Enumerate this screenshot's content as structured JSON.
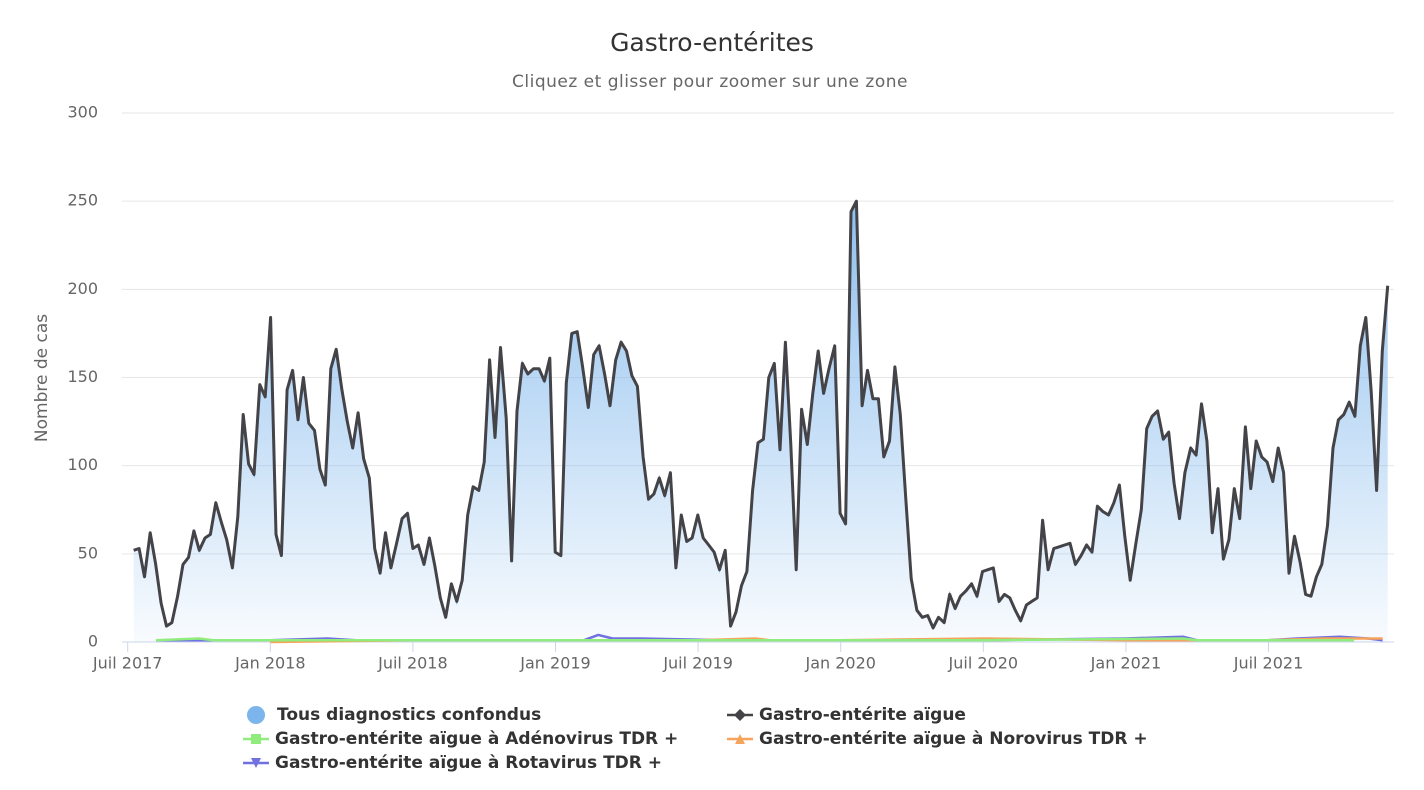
{
  "chart_data": {
    "type": "line",
    "title": "Gastro-entérites",
    "subtitle": "Cliquez et glisser pour zoomer sur une zone",
    "y_label": "Nombre de cas",
    "grid": true,
    "xlim": [
      2017.48,
      2021.94
    ],
    "xticks": [
      {
        "value": 2017.5,
        "label": "Juil 2017"
      },
      {
        "value": 2018.0,
        "label": "Jan 2018"
      },
      {
        "value": 2018.5,
        "label": "Juil 2018"
      },
      {
        "value": 2019.0,
        "label": "Jan 2019"
      },
      {
        "value": 2019.5,
        "label": "Juil 2019"
      },
      {
        "value": 2020.0,
        "label": "Jan 2020"
      },
      {
        "value": 2020.5,
        "label": "Juil 2020"
      },
      {
        "value": 2021.0,
        "label": "Jan 2021"
      },
      {
        "value": 2021.5,
        "label": "Juil 2021"
      }
    ],
    "ylim": [
      0,
      300
    ],
    "yticks": [
      0,
      50,
      100,
      150,
      200,
      250,
      300
    ],
    "x": [
      2017.521,
      2017.54,
      2017.559,
      2017.579,
      2017.598,
      2017.617,
      2017.636,
      2017.655,
      2017.675,
      2017.694,
      2017.713,
      2017.732,
      2017.751,
      2017.771,
      2017.79,
      2017.809,
      2017.828,
      2017.847,
      2017.867,
      2017.886,
      2017.905,
      2017.924,
      2017.943,
      2017.963,
      2017.982,
      2018.001,
      2018.02,
      2018.039,
      2018.059,
      2018.078,
      2018.097,
      2018.116,
      2018.135,
      2018.155,
      2018.174,
      2018.193,
      2018.212,
      2018.231,
      2018.251,
      2018.27,
      2018.289,
      2018.308,
      2018.327,
      2018.347,
      2018.366,
      2018.385,
      2018.404,
      2018.423,
      2018.443,
      2018.462,
      2018.481,
      2018.5,
      2018.519,
      2018.539,
      2018.558,
      2018.577,
      2018.596,
      2018.615,
      2018.635,
      2018.654,
      2018.673,
      2018.692,
      2018.711,
      2018.731,
      2018.75,
      2018.769,
      2018.788,
      2018.807,
      2018.827,
      2018.846,
      2018.865,
      2018.884,
      2018.903,
      2018.923,
      2018.942,
      2018.961,
      2018.98,
      2018.999,
      2019.019,
      2019.038,
      2019.057,
      2019.076,
      2019.095,
      2019.115,
      2019.134,
      2019.153,
      2019.172,
      2019.191,
      2019.211,
      2019.23,
      2019.249,
      2019.268,
      2019.287,
      2019.307,
      2019.326,
      2019.345,
      2019.364,
      2019.383,
      2019.403,
      2019.422,
      2019.441,
      2019.46,
      2019.479,
      2019.499,
      2019.518,
      2019.537,
      2019.556,
      2019.575,
      2019.595,
      2019.614,
      2019.633,
      2019.652,
      2019.671,
      2019.691,
      2019.71,
      2019.729,
      2019.748,
      2019.767,
      2019.787,
      2019.806,
      2019.825,
      2019.844,
      2019.863,
      2019.883,
      2019.902,
      2019.921,
      2019.94,
      2019.959,
      2019.979,
      2019.998,
      2020.017,
      2020.036,
      2020.055,
      2020.075,
      2020.094,
      2020.113,
      2020.132,
      2020.151,
      2020.171,
      2020.19,
      2020.209,
      2020.228,
      2020.247,
      2020.267,
      2020.286,
      2020.305,
      2020.324,
      2020.343,
      2020.363,
      2020.382,
      2020.401,
      2020.42,
      2020.439,
      2020.459,
      2020.478,
      2020.497,
      2020.516,
      2020.535,
      2020.555,
      2020.574,
      2020.593,
      2020.612,
      2020.631,
      2020.651,
      2020.67,
      2020.689,
      2020.708,
      2020.727,
      2020.747,
      2020.766,
      2020.785,
      2020.804,
      2020.823,
      2020.843,
      2020.862,
      2020.881,
      2020.9,
      2020.919,
      2020.939,
      2020.958,
      2020.977,
      2020.996,
      2021.015,
      2021.035,
      2021.054,
      2021.073,
      2021.092,
      2021.111,
      2021.131,
      2021.15,
      2021.169,
      2021.188,
      2021.207,
      2021.227,
      2021.246,
      2021.265,
      2021.284,
      2021.303,
      2021.323,
      2021.342,
      2021.361,
      2021.38,
      2021.399,
      2021.419,
      2021.438,
      2021.457,
      2021.476,
      2021.495,
      2021.515,
      2021.534,
      2021.553,
      2021.572,
      2021.591,
      2021.611,
      2021.63,
      2021.649,
      2021.668,
      2021.687,
      2021.707,
      2021.726,
      2021.745,
      2021.764,
      2021.783,
      2021.803,
      2021.822,
      2021.841,
      2021.86,
      2021.879,
      2021.899,
      2021.918
    ],
    "series": [
      {
        "name": "Tous diagnostics confondus",
        "color": "#7cb5ec",
        "kind": "area",
        "symbol": "circle",
        "values": [
          52,
          53,
          37,
          62,
          44,
          22,
          9,
          11,
          26,
          44,
          48,
          63,
          52,
          59,
          61,
          79,
          68,
          58,
          42,
          71,
          129,
          101,
          95,
          146,
          139,
          184,
          61,
          49,
          143,
          154,
          126,
          150,
          124,
          120,
          98,
          89,
          155,
          166,
          143,
          125,
          110,
          130,
          104,
          93,
          53,
          39,
          62,
          42,
          56,
          70,
          73,
          53,
          55,
          44,
          59,
          43,
          25,
          14,
          33,
          23,
          35,
          72,
          88,
          86,
          102,
          160,
          116,
          167,
          127,
          46,
          131,
          158,
          152,
          155,
          155,
          148,
          161,
          51,
          49,
          147,
          175,
          176,
          156,
          133,
          163,
          168,
          152,
          134,
          160,
          170,
          165,
          151,
          145,
          105,
          81,
          84,
          93,
          83,
          96,
          42,
          72,
          57,
          59,
          72,
          59,
          55,
          51,
          41,
          52,
          9,
          17,
          32,
          40,
          86,
          113,
          115,
          150,
          158,
          109,
          170,
          112,
          41,
          132,
          112,
          141,
          165,
          141,
          155,
          168,
          73,
          67,
          244,
          250,
          134,
          154,
          138,
          138,
          105,
          114,
          156,
          129,
          82,
          36,
          18,
          14,
          15,
          8,
          14,
          11,
          27,
          19,
          26,
          29,
          33,
          26,
          40,
          41,
          42,
          23,
          27,
          25,
          18,
          12,
          21,
          23,
          25,
          69,
          41,
          53,
          54,
          55,
          56,
          44,
          49,
          55,
          51,
          77,
          74,
          72,
          79,
          89,
          60,
          35,
          56,
          75,
          121,
          128,
          131,
          115,
          119,
          90,
          70,
          96,
          110,
          106,
          135,
          114,
          62,
          87,
          47,
          58,
          87,
          70,
          122,
          87,
          114,
          105,
          102,
          91,
          110,
          96,
          39,
          60,
          45,
          27,
          26,
          37,
          44,
          66,
          110,
          126,
          129,
          136,
          128,
          168,
          184,
          142,
          86,
          165,
          202
        ]
      },
      {
        "name": "Gastro-entérite aïgue",
        "color": "#434348",
        "kind": "line",
        "symbol": "diamond",
        "values": [
          52,
          53,
          37,
          62,
          44,
          22,
          9,
          11,
          26,
          44,
          48,
          63,
          52,
          59,
          61,
          79,
          68,
          58,
          42,
          71,
          129,
          101,
          95,
          146,
          139,
          184,
          61,
          49,
          143,
          154,
          126,
          150,
          124,
          120,
          98,
          89,
          155,
          166,
          143,
          125,
          110,
          130,
          104,
          93,
          53,
          39,
          62,
          42,
          56,
          70,
          73,
          53,
          55,
          44,
          59,
          43,
          25,
          14,
          33,
          23,
          35,
          72,
          88,
          86,
          102,
          160,
          116,
          167,
          127,
          46,
          131,
          158,
          152,
          155,
          155,
          148,
          161,
          51,
          49,
          147,
          175,
          176,
          156,
          133,
          163,
          168,
          152,
          134,
          160,
          170,
          165,
          151,
          145,
          105,
          81,
          84,
          93,
          83,
          96,
          42,
          72,
          57,
          59,
          72,
          59,
          55,
          51,
          41,
          52,
          9,
          17,
          32,
          40,
          86,
          113,
          115,
          150,
          158,
          109,
          170,
          112,
          41,
          132,
          112,
          141,
          165,
          141,
          155,
          168,
          73,
          67,
          244,
          250,
          134,
          154,
          138,
          138,
          105,
          114,
          156,
          129,
          82,
          36,
          18,
          14,
          15,
          8,
          14,
          11,
          27,
          19,
          26,
          29,
          33,
          26,
          40,
          41,
          42,
          23,
          27,
          25,
          18,
          12,
          21,
          23,
          25,
          69,
          41,
          53,
          54,
          55,
          56,
          44,
          49,
          55,
          51,
          77,
          74,
          72,
          79,
          89,
          60,
          35,
          56,
          75,
          121,
          128,
          131,
          115,
          119,
          90,
          70,
          96,
          110,
          106,
          135,
          114,
          62,
          87,
          47,
          58,
          87,
          70,
          122,
          87,
          114,
          105,
          102,
          91,
          110,
          96,
          39,
          60,
          45,
          27,
          26,
          37,
          44,
          66,
          110,
          126,
          129,
          136,
          128,
          168,
          184,
          142,
          86,
          165,
          202
        ]
      },
      {
        "name": "Gastro-entérite aïgue à Adénovirus TDR +",
        "color": "#90ed7d",
        "kind": "line",
        "symbol": "square",
        "x": [
          2017.6,
          2017.75,
          2017.8,
          2018.5,
          2019.5,
          2020.5,
          2021.2,
          2021.25,
          2021.5,
          2021.8
        ],
        "values": [
          1,
          2,
          1,
          1,
          1,
          1,
          2,
          1,
          1,
          1
        ]
      },
      {
        "name": "Gastro-entérite aïgue à Norovirus TDR +",
        "color": "#f7a35c",
        "kind": "line",
        "symbol": "triangle",
        "x": [
          2018.0,
          2018.5,
          2019.5,
          2019.7,
          2019.75,
          2020.0,
          2020.5,
          2021.0,
          2021.5,
          2021.7,
          2021.9
        ],
        "values": [
          0,
          1,
          1,
          2,
          1,
          1,
          2,
          1,
          1,
          2,
          2
        ]
      },
      {
        "name": "Gastro-entérite aïgue à Rotavirus TDR +",
        "color": "#7070e0",
        "kind": "line",
        "symbol": "triangle-down",
        "x": [
          2017.6,
          2018.0,
          2018.2,
          2018.3,
          2018.6,
          2019.0,
          2019.1,
          2019.15,
          2019.2,
          2019.3,
          2019.6,
          2020.0,
          2020.5,
          2021.0,
          2021.2,
          2021.25,
          2021.5,
          2021.6,
          2021.75,
          2021.85,
          2021.9
        ],
        "values": [
          1,
          1,
          2,
          1,
          1,
          1,
          1,
          4,
          2,
          2,
          1,
          1,
          1,
          2,
          3,
          1,
          1,
          2,
          3,
          2,
          1
        ]
      }
    ]
  }
}
